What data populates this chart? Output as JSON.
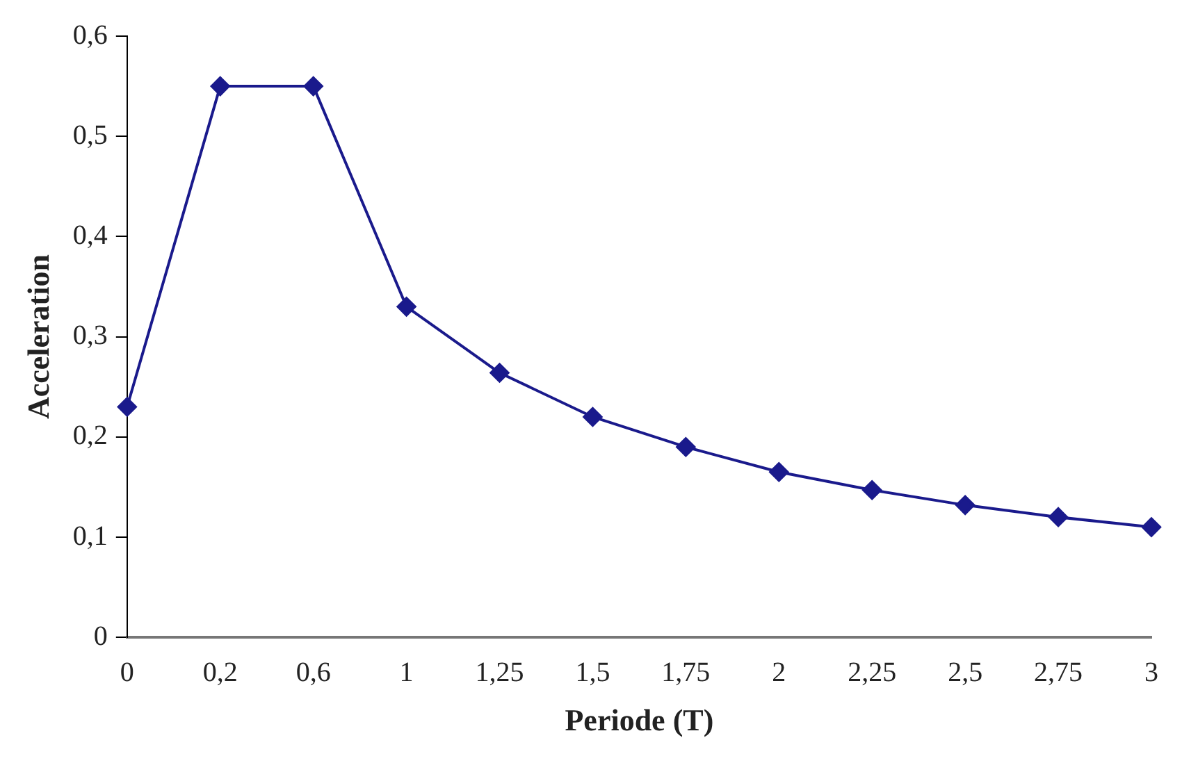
{
  "chart_data": {
    "type": "line",
    "xlabel": "Periode (T)",
    "ylabel": "Acceleration",
    "categories": [
      "0",
      "0,2",
      "0,6",
      "1",
      "1,25",
      "1,5",
      "1,75",
      "2",
      "2,25",
      "2,5",
      "2,75",
      "3"
    ],
    "series": [
      {
        "color": "#1a1a8c",
        "values": [
          0.23,
          0.55,
          0.55,
          0.33,
          0.264,
          0.22,
          0.19,
          0.165,
          0.147,
          0.132,
          0.12,
          0.11
        ]
      }
    ],
    "ylim": [
      0,
      0.6
    ],
    "yticks": [
      {
        "value": 0,
        "label": "0"
      },
      {
        "value": 0.1,
        "label": "0,1"
      },
      {
        "value": 0.2,
        "label": "0,2"
      },
      {
        "value": 0.3,
        "label": "0,3"
      },
      {
        "value": 0.4,
        "label": "0,4"
      },
      {
        "value": 0.5,
        "label": "0,5"
      },
      {
        "value": 0.6,
        "label": "0,6"
      }
    ],
    "grid": false,
    "legend": false,
    "marker": "diamond",
    "line_style": "solid"
  }
}
